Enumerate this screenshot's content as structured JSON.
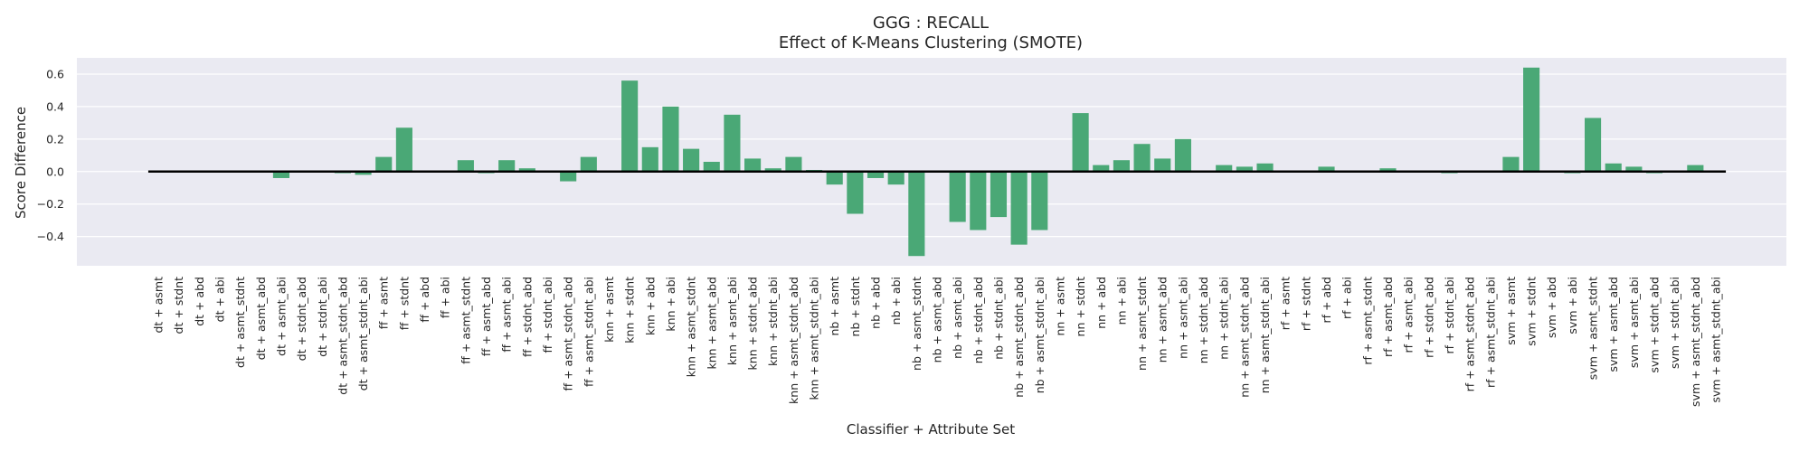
{
  "chart_data": {
    "type": "bar",
    "title": "GGG : RECALL",
    "subtitle": "Effect of K-Means Clustering (SMOTE)",
    "xlabel": "Classifier + Attribute Set",
    "ylabel": "Score Difference",
    "ylim": [
      -0.58,
      0.7
    ],
    "yticks": [
      -0.4,
      -0.2,
      0.0,
      0.2,
      0.4,
      0.6
    ],
    "ytick_labels": [
      "−0.4",
      "−0.2",
      "0.0",
      "0.2",
      "0.4",
      "0.6"
    ],
    "grid": true,
    "bar_color": "#4aa876",
    "background": "#eaeaf2",
    "baseline": 0,
    "categories": [
      "dt + asmt",
      "dt + stdnt",
      "dt + abd",
      "dt + abi",
      "dt + asmt_stdnt",
      "dt + asmt_abd",
      "dt + asmt_abi",
      "dt + stdnt_abd",
      "dt + stdnt_abi",
      "dt + asmt_stdnt_abd",
      "dt + asmt_stdnt_abi",
      "ff + asmt",
      "ff + stdnt",
      "ff + abd",
      "ff + abi",
      "ff + asmt_stdnt",
      "ff + asmt_abd",
      "ff + asmt_abi",
      "ff + stdnt_abd",
      "ff + stdnt_abi",
      "ff + asmt_stdnt_abd",
      "ff + asmt_stdnt_abi",
      "knn + asmt",
      "knn + stdnt",
      "knn + abd",
      "knn + abi",
      "knn + asmt_stdnt",
      "knn + asmt_abd",
      "knn + asmt_abi",
      "knn + stdnt_abd",
      "knn + stdnt_abi",
      "knn + asmt_stdnt_abd",
      "knn + asmt_stdnt_abi",
      "nb + asmt",
      "nb + stdnt",
      "nb + abd",
      "nb + abi",
      "nb + asmt_stdnt",
      "nb + asmt_abd",
      "nb + asmt_abi",
      "nb + stdnt_abd",
      "nb + stdnt_abi",
      "nb + asmt_stdnt_abd",
      "nb + asmt_stdnt_abi",
      "nn + asmt",
      "nn + stdnt",
      "nn + abd",
      "nn + abi",
      "nn + asmt_stdnt",
      "nn + asmt_abd",
      "nn + asmt_abi",
      "nn + stdnt_abd",
      "nn + stdnt_abi",
      "nn + asmt_stdnt_abd",
      "nn + asmt_stdnt_abi",
      "rf + asmt",
      "rf + stdnt",
      "rf + abd",
      "rf + abi",
      "rf + asmt_stdnt",
      "rf + asmt_abd",
      "rf + asmt_abi",
      "rf + stdnt_abd",
      "rf + stdnt_abi",
      "rf + asmt_stdnt_abd",
      "rf + asmt_stdnt_abi",
      "svm + asmt",
      "svm + stdnt",
      "svm + abd",
      "svm + abi",
      "svm + asmt_stdnt",
      "svm + asmt_abd",
      "svm + asmt_abi",
      "svm + stdnt_abd",
      "svm + stdnt_abi",
      "svm + asmt_stdnt_abd",
      "svm + asmt_stdnt_abi"
    ],
    "values": [
      0.0,
      0.0,
      0.0,
      0.0,
      0.0,
      0.0,
      -0.04,
      0.0,
      0.0,
      -0.01,
      -0.02,
      0.09,
      0.27,
      0.0,
      0.0,
      0.07,
      -0.01,
      0.07,
      0.02,
      0.0,
      -0.06,
      0.09,
      0.0,
      0.56,
      0.15,
      0.4,
      0.14,
      0.06,
      0.35,
      0.08,
      0.02,
      0.09,
      0.01,
      -0.08,
      -0.26,
      -0.04,
      -0.08,
      -0.52,
      0.0,
      -0.31,
      -0.36,
      -0.28,
      -0.45,
      -0.36,
      0.0,
      0.36,
      0.04,
      0.07,
      0.17,
      0.08,
      0.2,
      0.0,
      0.04,
      0.03,
      0.05,
      0.0,
      0.0,
      0.03,
      0.0,
      0.0,
      0.02,
      0.0,
      0.0,
      -0.01,
      0.0,
      0.0,
      0.09,
      0.64,
      0.0,
      -0.01,
      0.33,
      0.05,
      0.03,
      -0.01,
      0.0,
      0.04,
      0.0
    ]
  }
}
